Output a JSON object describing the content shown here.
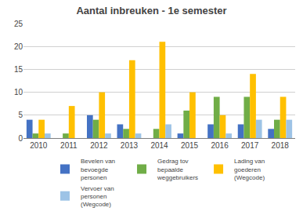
{
  "chart_data": {
    "type": "bar",
    "title": "Aantal inbreuken - 1e semester",
    "categories": [
      "2010",
      "2011",
      "2012",
      "2013",
      "2014",
      "2015",
      "2016",
      "2017",
      "2018"
    ],
    "series": [
      {
        "name": "Bevelen van\nbevoegde\npersonen",
        "color": "#4472c4",
        "values": [
          4,
          0,
          5,
          3,
          0,
          1,
          3,
          3,
          2
        ]
      },
      {
        "name": "Gedrag tov\nbepaalde\nweggebruikers",
        "color": "#70ad47",
        "values": [
          1,
          1,
          4,
          2,
          2,
          6,
          9,
          9,
          4
        ]
      },
      {
        "name": "Lading van\ngoederen\n(Wegcode)",
        "color": "#ffc000",
        "values": [
          4,
          7,
          10,
          17,
          21,
          10,
          5,
          14,
          9
        ]
      },
      {
        "name": "Vervoer van\npersonen\n(Wegcode)",
        "color": "#9dc3e6",
        "values": [
          1,
          0,
          1,
          1,
          3,
          0,
          1,
          4,
          4
        ]
      }
    ],
    "ylim": [
      0,
      25
    ],
    "yticks": [
      0,
      5,
      10,
      15,
      20,
      25
    ],
    "grid": true,
    "legend": "bottom"
  }
}
